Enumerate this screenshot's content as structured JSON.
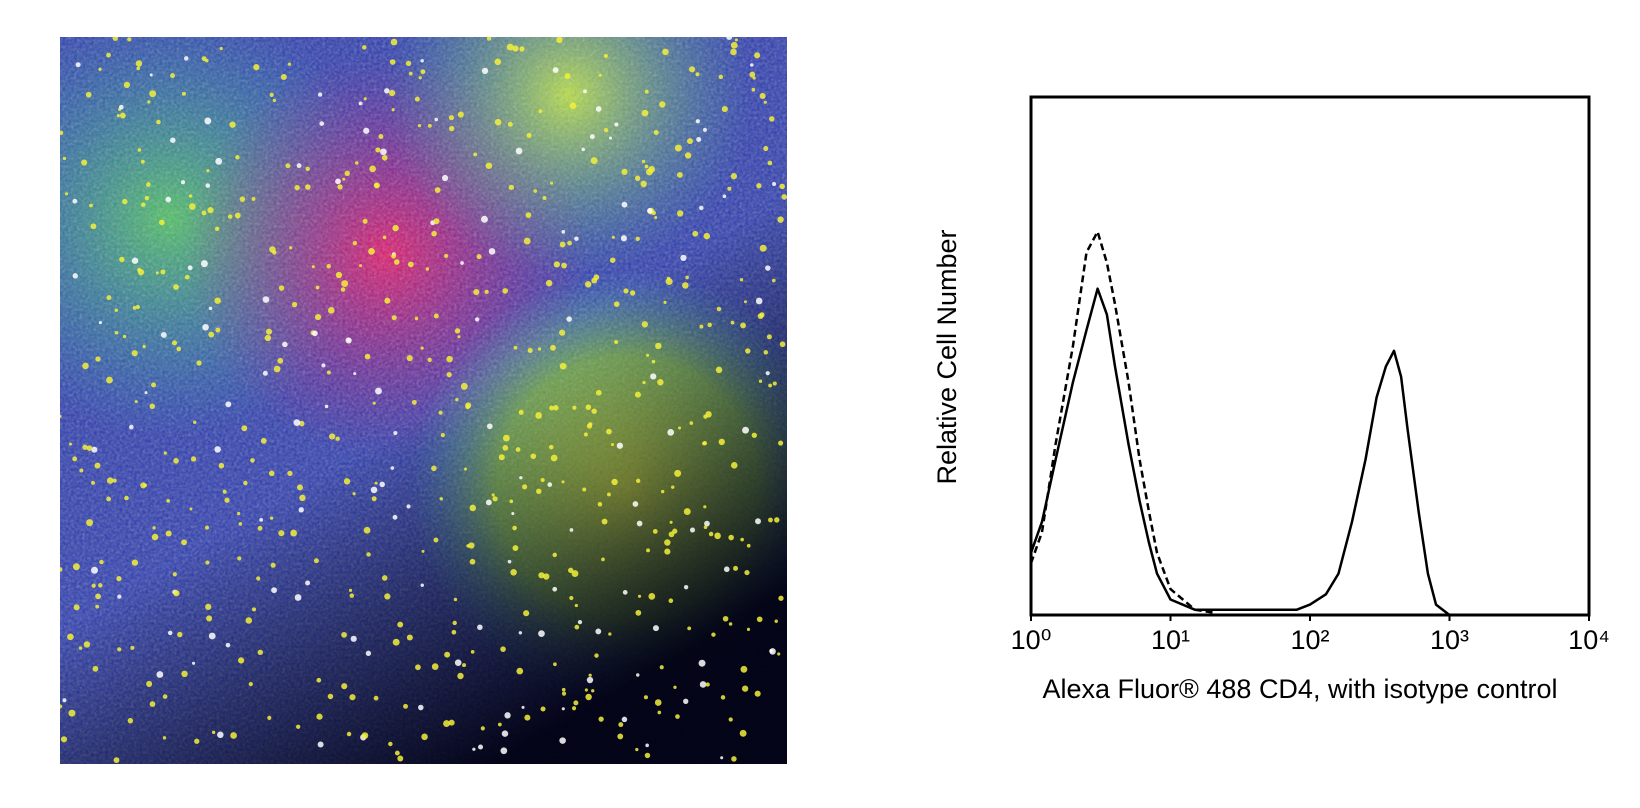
{
  "chart_data": {
    "type": "line",
    "xlabel": "Alexa Fluor® 488 CD4, with isotype control",
    "ylabel": "Relative Cell Number",
    "log_x": true,
    "xlim": [
      1,
      10000
    ],
    "xticks": [
      {
        "value": 1,
        "label": "10⁰"
      },
      {
        "value": 10,
        "label": "10¹"
      },
      {
        "value": 100,
        "label": "10²"
      },
      {
        "value": 1000,
        "label": "10³"
      },
      {
        "value": 10000,
        "label": "10⁴"
      }
    ],
    "ylim": [
      0,
      100
    ],
    "x": [
      1,
      1.2,
      1.5,
      2,
      2.5,
      3,
      3.5,
      4,
      5,
      6,
      7,
      8,
      10,
      15,
      20,
      30,
      50,
      80,
      100,
      130,
      160,
      200,
      250,
      300,
      350,
      400,
      450,
      500,
      600,
      700,
      800,
      1000
    ],
    "series": [
      {
        "color": "#000000",
        "style": "solid",
        "values": [
          12,
          18,
          30,
          45,
          55,
          63,
          58,
          48,
          33,
          22,
          14,
          8,
          3,
          1,
          1,
          1,
          1,
          1,
          2,
          4,
          8,
          18,
          30,
          42,
          48,
          51,
          46,
          36,
          20,
          8,
          2,
          0
        ]
      },
      {
        "color": "#000000",
        "style": "dashed",
        "values": [
          10,
          16,
          33,
          52,
          70,
          74,
          68,
          60,
          45,
          30,
          20,
          12,
          5,
          1,
          0.5,
          null,
          null,
          null,
          null,
          null,
          null,
          null,
          null,
          null,
          null,
          null,
          null,
          null,
          null,
          null,
          null,
          null
        ]
      }
    ]
  }
}
